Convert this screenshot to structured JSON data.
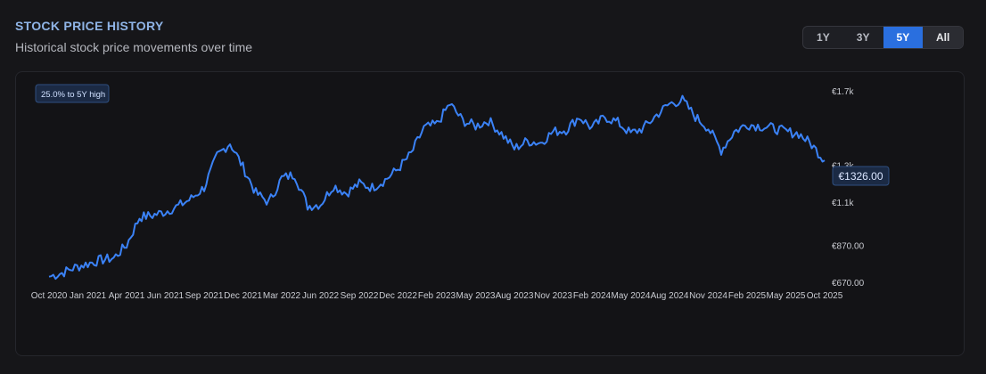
{
  "header": {
    "title": "STOCK PRICE HISTORY",
    "subtitle": "Historical stock price movements over time"
  },
  "range_selector": {
    "options": [
      "1Y",
      "3Y",
      "5Y",
      "All"
    ],
    "selected": "5Y"
  },
  "badge": {
    "text": "25.0% to 5Y high"
  },
  "current_price": {
    "text": "€1326.00",
    "value": 1326
  },
  "colors": {
    "line": "#3b82f6",
    "accent": "#2a6fdf",
    "badge_bg": "#1b2a44",
    "badge_border": "#2f4f80"
  },
  "chart_data": {
    "type": "line",
    "title": "STOCK PRICE HISTORY",
    "subtitle": "Historical stock price movements over time",
    "xlabel": "",
    "ylabel": "",
    "x_tick_labels": [
      "Oct 2020",
      "Jan 2021",
      "Apr 2021",
      "Jun 2021",
      "Sep 2021",
      "Dec 2021",
      "Mar 2022",
      "Jun 2022",
      "Sep 2022",
      "Dec 2022",
      "Feb 2023",
      "May 2023",
      "Aug 2023",
      "Nov 2023",
      "Feb 2024",
      "May 2024",
      "Aug 2024",
      "Nov 2024",
      "Feb 2025",
      "May 2025",
      "Oct 2025"
    ],
    "y_tick_labels": [
      "€1.7k",
      "€1.3k",
      "€1.1k",
      "€870.00",
      "€670.00"
    ],
    "y_tick_values": [
      1700,
      1300,
      1100,
      870,
      670
    ],
    "ylim": [
      670,
      1700
    ],
    "grid": false,
    "legend": "none",
    "series": [
      {
        "x": [
          "2020-10",
          "2020-11",
          "2020-12",
          "2021-01",
          "2021-02",
          "2021-03",
          "2021-04",
          "2021-05",
          "2021-06",
          "2021-07",
          "2021-08",
          "2021-09",
          "2021-10",
          "2021-11",
          "2021-12",
          "2022-01",
          "2022-02",
          "2022-03",
          "2022-04",
          "2022-05",
          "2022-06",
          "2022-07",
          "2022-08",
          "2022-09",
          "2022-10",
          "2022-11",
          "2022-12",
          "2023-01",
          "2023-02",
          "2023-03",
          "2023-04",
          "2023-05",
          "2023-06",
          "2023-07",
          "2023-08",
          "2023-09",
          "2023-10",
          "2023-11",
          "2023-12",
          "2024-01",
          "2024-02",
          "2024-03",
          "2024-04",
          "2024-05",
          "2024-06",
          "2024-07",
          "2024-08",
          "2024-09",
          "2024-10",
          "2024-11",
          "2024-12",
          "2025-01",
          "2025-02",
          "2025-03",
          "2025-04",
          "2025-05",
          "2025-06",
          "2025-07",
          "2025-08",
          "2025-09",
          "2025-10"
        ],
        "values": [
          700,
          720,
          750,
          770,
          790,
          800,
          870,
          1020,
          1030,
          1050,
          1080,
          1120,
          1180,
          1350,
          1420,
          1290,
          1150,
          1100,
          1230,
          1250,
          1080,
          1090,
          1190,
          1150,
          1200,
          1180,
          1220,
          1280,
          1360,
          1500,
          1520,
          1630,
          1540,
          1510,
          1540,
          1470,
          1390,
          1430,
          1420,
          1480,
          1490,
          1560,
          1500,
          1560,
          1530,
          1470,
          1500,
          1570,
          1630,
          1650,
          1560,
          1500,
          1380,
          1480,
          1520,
          1510,
          1500,
          1480,
          1470,
          1410,
          1326
        ]
      }
    ]
  }
}
